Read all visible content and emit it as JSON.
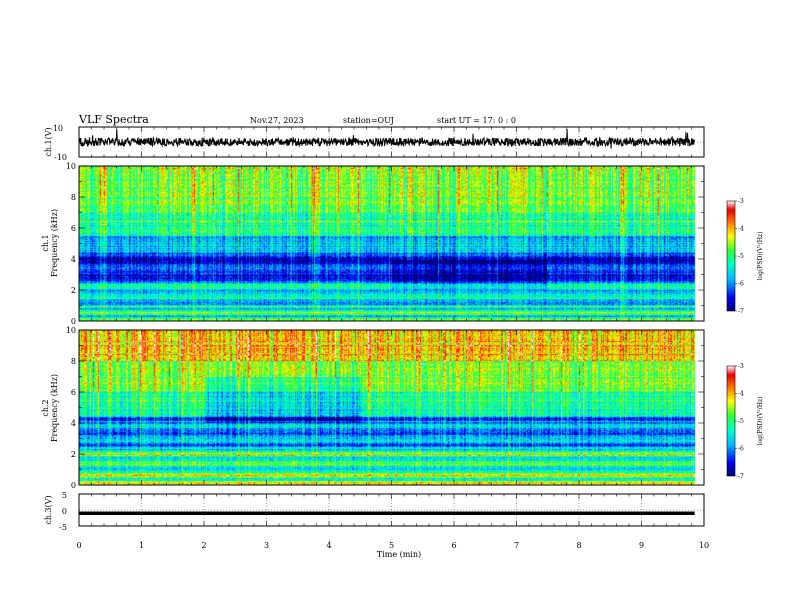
{
  "header": {
    "title": "VLF Spectra",
    "date": "Nov.27, 2023",
    "station": "station=OUJ",
    "start": "start  UT =   17: 0  : 0"
  },
  "chart_data": [
    {
      "type": "line",
      "name": "ch1-waveform",
      "ylabel": "ch.1(V)",
      "ylim": [
        -10,
        10
      ],
      "yticks": [
        "10",
        "-10"
      ],
      "xlim": [
        0,
        10
      ],
      "baseline": 0,
      "color": "#000000"
    },
    {
      "type": "heatmap",
      "name": "ch1-spectrogram",
      "ylabel": "ch.1\nFrequency (kHz)",
      "ylim": [
        0,
        10
      ],
      "yticks": [
        "0",
        "2",
        "4",
        "6",
        "8",
        "10"
      ],
      "xlim": [
        0,
        10
      ],
      "data_end_min": 9.85,
      "colorbar": {
        "label": "log(PSD)(V²/Hz)",
        "min": -7,
        "max": -3,
        "ticks": [
          "-3",
          "-4",
          "-5",
          "-6",
          "-7"
        ]
      }
    },
    {
      "type": "heatmap",
      "name": "ch2-spectrogram",
      "ylabel": "ch.2\nFrequency (kHz)",
      "ylim": [
        0,
        10
      ],
      "yticks": [
        "0",
        "2",
        "4",
        "6",
        "8",
        "10"
      ],
      "xlim": [
        0,
        10
      ],
      "data_end_min": 9.85,
      "colorbar": {
        "label": "log(PSD)(V²/Hz)",
        "min": -7,
        "max": -3,
        "ticks": [
          "-3",
          "-4",
          "-5",
          "-6",
          "-7"
        ]
      }
    },
    {
      "type": "line",
      "name": "ch3-waveform",
      "ylabel": "ch.3(V)",
      "ylim": [
        -5,
        5
      ],
      "yticks": [
        "5",
        "0",
        "-5"
      ],
      "xlim": [
        0,
        10
      ],
      "baseline": -1,
      "color": "#000000"
    }
  ],
  "xaxis": {
    "label": "Time (min)",
    "ticks": [
      "0",
      "1",
      "2",
      "3",
      "4",
      "5",
      "6",
      "7",
      "8",
      "9",
      "10"
    ]
  }
}
